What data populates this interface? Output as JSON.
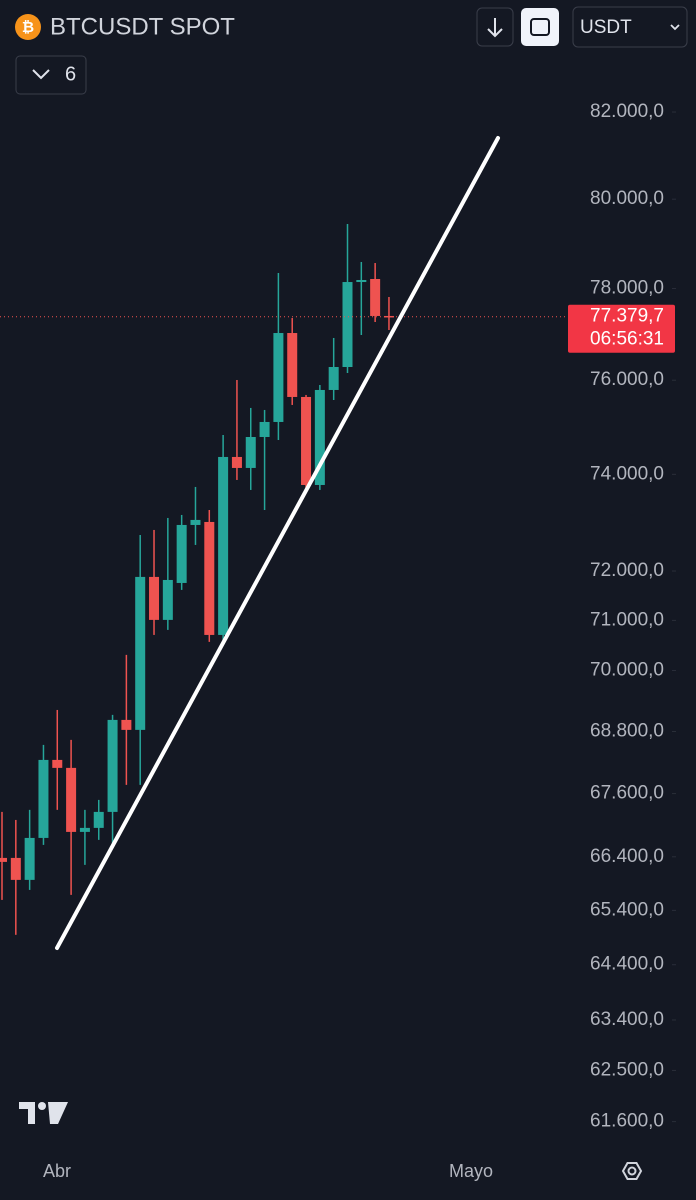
{
  "header": {
    "symbol": "BTCUSDT SPOT",
    "indicator_count": "6",
    "currency": "USDT"
  },
  "chart_data": {
    "type": "candlestick",
    "log": true,
    "grid": false,
    "up_color": "#26a69a",
    "down_color": "#ef5350",
    "open": [
      66379,
      66379,
      65967,
      66756,
      68248,
      68094,
      66870,
      66946,
      67250,
      69026,
      68831,
      71880,
      71010,
      71757,
      72946,
      73008,
      70708,
      74365,
      74134,
      74787,
      75106,
      77023,
      75640,
      73777,
      75790,
      76285,
      78144,
      78211,
      77396
    ],
    "high": [
      67250,
      67097,
      67289,
      68539,
      69221,
      68636,
      67289,
      67479,
      69124,
      70309,
      72740,
      72843,
      73091,
      73153,
      73736,
      73256,
      74830,
      76005,
      75405,
      75362,
      78344,
      77351,
      75683,
      75897,
      76915,
      79439,
      78589,
      78566,
      77813
    ],
    "low": [
      65594,
      64948,
      65780,
      66624,
      67289,
      65687,
      66248,
      66719,
      66624,
      67767,
      67767,
      70708,
      70809,
      71616,
      72534,
      70568,
      70608,
      73882,
      73673,
      73256,
      74724,
      75469,
      73673,
      73673,
      75575,
      76156,
      76980,
      77264,
      77089
    ],
    "close": [
      66304,
      65967,
      66756,
      68248,
      68094,
      66870,
      66946,
      67250,
      69026,
      68831,
      71880,
      71010,
      71818,
      72946,
      73050,
      70708,
      74365,
      74134,
      74787,
      75106,
      77023,
      75640,
      73777,
      75790,
      76285,
      78144,
      78189,
      77396,
      77379.7
    ],
    "ylim": [
      61280,
      82280
    ],
    "yticks": [
      {
        "value": 82000,
        "label": "82.000,0"
      },
      {
        "value": 80000,
        "label": "80.000,0"
      },
      {
        "value": 78000,
        "label": "78.000,0"
      },
      {
        "value": 76000,
        "label": "76.000,0"
      },
      {
        "value": 74000,
        "label": "74.000,0"
      },
      {
        "value": 72000,
        "label": "72.000,0"
      },
      {
        "value": 71000,
        "label": "71.000,0"
      },
      {
        "value": 70000,
        "label": "70.000,0"
      },
      {
        "value": 68800,
        "label": "68.800,0"
      },
      {
        "value": 67600,
        "label": "67.600,0"
      },
      {
        "value": 66400,
        "label": "66.400,0"
      },
      {
        "value": 65400,
        "label": "65.400,0"
      },
      {
        "value": 64400,
        "label": "64.400,0"
      },
      {
        "value": 63400,
        "label": "63.400,0"
      },
      {
        "value": 62500,
        "label": "62.500,0"
      },
      {
        "value": 61600,
        "label": "61.600,0"
      }
    ],
    "last_price": {
      "value": 77379.7,
      "label": "77.379,7"
    },
    "countdown": "06:56:31",
    "x_labels": [
      "Abr",
      "Mayo"
    ]
  }
}
